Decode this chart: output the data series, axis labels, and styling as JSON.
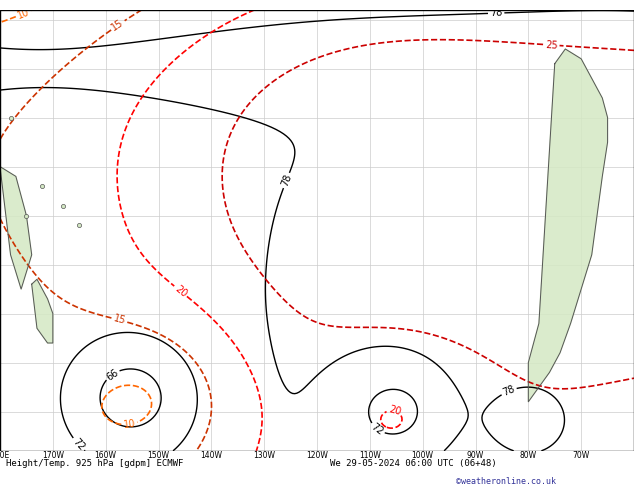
{
  "title_bottom": "Height/Temp. 925 hPa [gdpm] ECMWF",
  "title_date": "We 29-05-2024 06:00 UTC (06+48)",
  "copyright": "©weatheronline.co.uk",
  "background_color": "#ffffff",
  "grid_color": "#cccccc",
  "lon_min": -180,
  "lon_max": -60,
  "lat_min": -68,
  "lat_max": 22,
  "geopotential_color": "#000000",
  "temp_colors_pos": [
    "#ff8800",
    "#ff6600",
    "#cc3300",
    "#ff0000",
    "#cc0000"
  ],
  "temp_color_zero": "#00aa00",
  "temp_colors_neg": [
    "#00ccff",
    "#0066ff",
    "#0000cc",
    "#6600cc"
  ],
  "land_color": "#d4e8c4",
  "coast_color": "#555555"
}
